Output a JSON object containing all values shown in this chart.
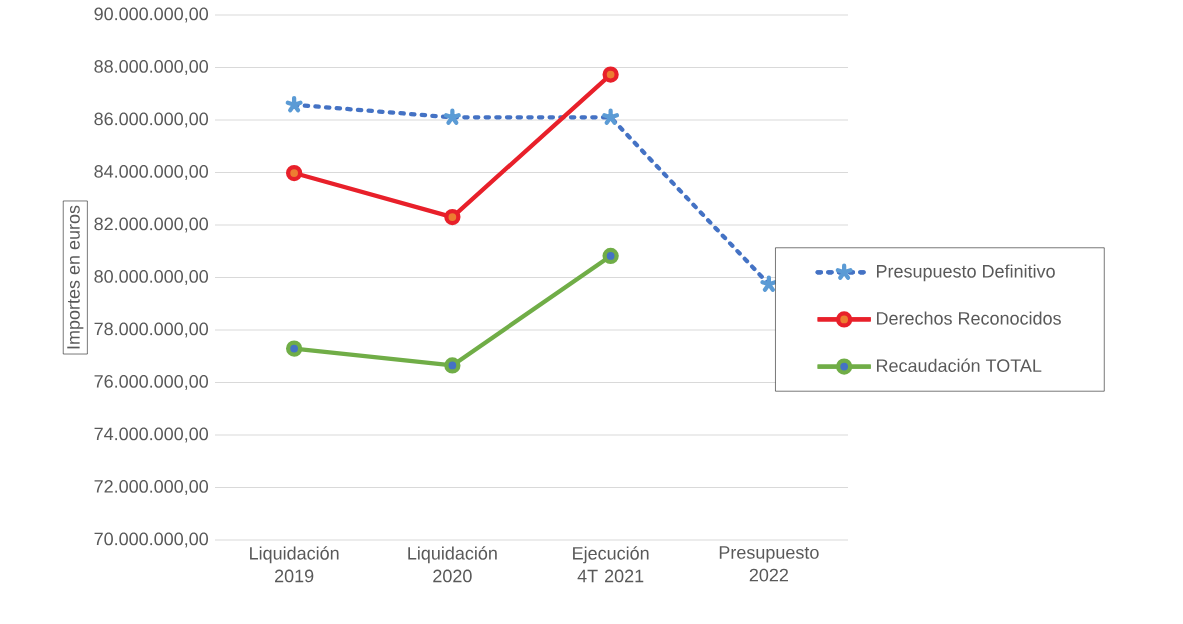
{
  "chart_data": {
    "type": "line",
    "ylabel": "Importes en euros",
    "categories": [
      "Liquidación 2019",
      "Liquidación 2020",
      "Ejecución 4T 2021",
      "Presupuesto 2022"
    ],
    "series": [
      {
        "name": "Presupuesto Definitivo",
        "color": "#4472c4",
        "values": [
          86580000.0,
          86100000.0,
          86100000.0,
          79740000.0
        ],
        "marker": "cross",
        "line_style": "dotted"
      },
      {
        "name": "Derechos Reconocidos",
        "color": "#e8202a",
        "values": [
          83980000.0,
          82300000.0,
          87730000.0,
          null
        ],
        "marker": "circle",
        "line_style": "solid"
      },
      {
        "name": "Recaudación TOTAL",
        "color": "#70ad47",
        "values": [
          77290000.0,
          76650000.0,
          80820000.0,
          null
        ],
        "marker": "circle",
        "line_style": "solid"
      }
    ],
    "ylim": [
      70000000,
      90000000
    ],
    "yticks": [
      {
        "value": 70000000,
        "label": "70.000.000,00"
      },
      {
        "value": 72000000,
        "label": "72.000.000,00"
      },
      {
        "value": 74000000,
        "label": "74.000.000,00"
      },
      {
        "value": 76000000,
        "label": "76.000.000,00"
      },
      {
        "value": 78000000,
        "label": "78.000.000,00"
      },
      {
        "value": 80000000,
        "label": "80.000.000,00"
      },
      {
        "value": 82000000,
        "label": "82.000.000,00"
      },
      {
        "value": 84000000,
        "label": "84.000.000,00"
      },
      {
        "value": 86000000,
        "label": "86.000.000,00"
      },
      {
        "value": 88000000,
        "label": "88.000.000,00"
      },
      {
        "value": 90000000,
        "label": "90.000.000,00"
      }
    ],
    "grid": "y",
    "legend": "right"
  }
}
